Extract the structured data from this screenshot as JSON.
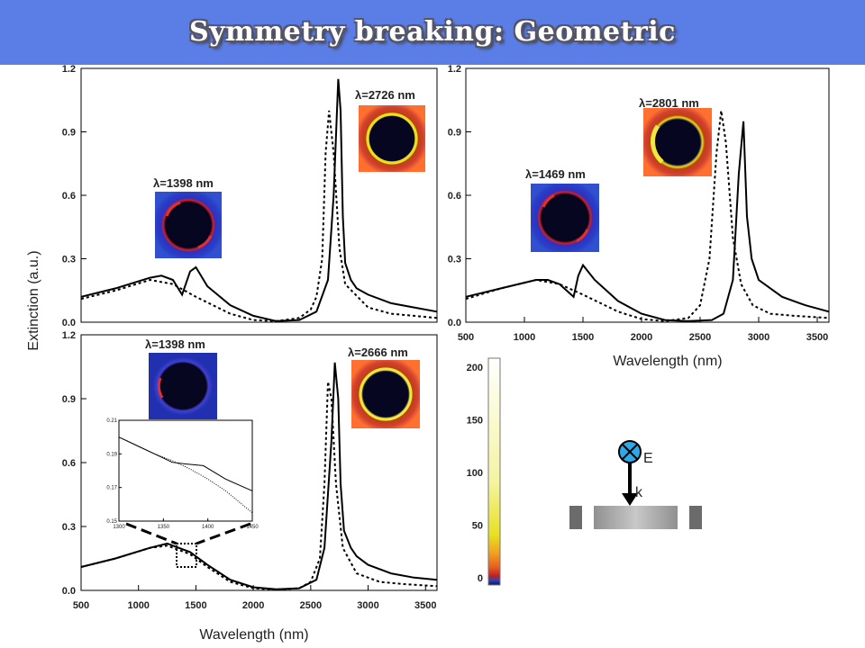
{
  "header": {
    "title": "Symmetry breaking: Geometric"
  },
  "y_axis_label": "Extinction (a.u.)",
  "x_axis_label": "Wavelength (nm)",
  "colorbar": {
    "ticks": [
      "0",
      "50",
      "100",
      "150",
      "200"
    ],
    "colors": [
      "#1a1040",
      "#2a44c0",
      "#c02020",
      "#e86020",
      "#f0a020",
      "#e8e020",
      "#f4f4a0",
      "#ffffff"
    ]
  },
  "schematic": {
    "e_label": "E",
    "k_label": "k"
  },
  "chart_data": [
    {
      "type": "line",
      "xlabel": "",
      "ylabel": "Extinction (a.u.)",
      "xlim": [
        500,
        3600
      ],
      "ylim": [
        0,
        1.2
      ],
      "yticks": [
        "0.0",
        "0.3",
        "0.6",
        "0.9",
        "1.2"
      ],
      "xticks": [],
      "annotations": [
        "λ=1398 nm",
        "λ=2726 nm"
      ],
      "series": [
        {
          "style": "solid",
          "x": [
            500,
            800,
            1100,
            1200,
            1300,
            1380,
            1450,
            1500,
            1600,
            1800,
            2000,
            2200,
            2400,
            2550,
            2650,
            2700,
            2740,
            2760,
            2780,
            2800,
            2850,
            2900,
            3000,
            3200,
            3400,
            3600
          ],
          "y": [
            0.12,
            0.16,
            0.21,
            0.22,
            0.2,
            0.13,
            0.24,
            0.26,
            0.17,
            0.08,
            0.03,
            0.005,
            0.01,
            0.05,
            0.2,
            0.6,
            1.15,
            1.0,
            0.5,
            0.28,
            0.2,
            0.16,
            0.13,
            0.09,
            0.07,
            0.05
          ]
        },
        {
          "style": "dotted",
          "x": [
            500,
            800,
            1100,
            1300,
            1500,
            1800,
            2000,
            2200,
            2400,
            2500,
            2550,
            2600,
            2630,
            2660,
            2700,
            2750,
            2800,
            3000,
            3200,
            3400,
            3600
          ],
          "y": [
            0.11,
            0.15,
            0.2,
            0.18,
            0.12,
            0.04,
            0.01,
            0.005,
            0.02,
            0.06,
            0.12,
            0.3,
            0.8,
            1.0,
            0.8,
            0.35,
            0.18,
            0.07,
            0.04,
            0.03,
            0.02
          ]
        }
      ]
    },
    {
      "type": "line",
      "xlabel": "Wavelength (nm)",
      "ylabel": "",
      "xlim": [
        500,
        3600
      ],
      "ylim": [
        0,
        1.2
      ],
      "yticks": [
        "0.0",
        "0.3",
        "0.6",
        "0.9",
        "1.2"
      ],
      "xticks": [
        "500",
        "1000",
        "1500",
        "2000",
        "2500",
        "3000",
        "3500"
      ],
      "annotations": [
        "λ=1469 nm",
        "λ=2801 nm"
      ],
      "series": [
        {
          "style": "solid",
          "x": [
            500,
            800,
            1100,
            1200,
            1300,
            1420,
            1460,
            1500,
            1600,
            1800,
            2000,
            2200,
            2400,
            2600,
            2700,
            2780,
            2830,
            2870,
            2900,
            2940,
            3000,
            3200,
            3400,
            3600
          ],
          "y": [
            0.12,
            0.16,
            0.2,
            0.2,
            0.18,
            0.12,
            0.22,
            0.27,
            0.2,
            0.1,
            0.04,
            0.01,
            0.005,
            0.01,
            0.04,
            0.2,
            0.7,
            0.95,
            0.5,
            0.3,
            0.2,
            0.12,
            0.08,
            0.05
          ]
        },
        {
          "style": "dotted",
          "x": [
            500,
            800,
            1100,
            1300,
            1500,
            1800,
            2000,
            2200,
            2400,
            2500,
            2580,
            2640,
            2680,
            2720,
            2780,
            2850,
            2950,
            3100,
            3300,
            3600
          ],
          "y": [
            0.11,
            0.16,
            0.2,
            0.18,
            0.13,
            0.05,
            0.015,
            0.005,
            0.02,
            0.08,
            0.3,
            0.8,
            1.0,
            0.85,
            0.4,
            0.18,
            0.08,
            0.04,
            0.03,
            0.02
          ]
        }
      ]
    },
    {
      "type": "line",
      "xlabel": "Wavelength (nm)",
      "ylabel": "",
      "xlim": [
        500,
        3600
      ],
      "ylim": [
        0,
        1.2
      ],
      "yticks": [
        "0.0",
        "0.3",
        "0.6",
        "0.9",
        "1.2"
      ],
      "xticks": [
        "500",
        "1000",
        "1500",
        "2000",
        "2500",
        "3000",
        "3500"
      ],
      "annotations": [
        "λ=1398 nm",
        "λ=2666 nm"
      ],
      "series": [
        {
          "style": "solid",
          "x": [
            500,
            800,
            1100,
            1250,
            1350,
            1450,
            1600,
            1800,
            2000,
            2200,
            2400,
            2550,
            2620,
            2680,
            2710,
            2740,
            2760,
            2790,
            2850,
            2900,
            3000,
            3200,
            3400,
            3600
          ],
          "y": [
            0.11,
            0.15,
            0.2,
            0.22,
            0.2,
            0.18,
            0.12,
            0.05,
            0.015,
            0.005,
            0.01,
            0.05,
            0.2,
            0.7,
            1.07,
            0.9,
            0.5,
            0.28,
            0.2,
            0.16,
            0.12,
            0.08,
            0.06,
            0.05
          ]
        },
        {
          "style": "dotted",
          "x": [
            500,
            800,
            1100,
            1250,
            1350,
            1450,
            1600,
            1800,
            2000,
            2200,
            2400,
            2500,
            2580,
            2620,
            2650,
            2680,
            2720,
            2780,
            2900,
            3100,
            3300,
            3600
          ],
          "y": [
            0.11,
            0.15,
            0.2,
            0.21,
            0.19,
            0.17,
            0.11,
            0.04,
            0.01,
            0.003,
            0.01,
            0.04,
            0.15,
            0.5,
            0.98,
            0.9,
            0.5,
            0.2,
            0.08,
            0.04,
            0.03,
            0.02
          ]
        }
      ]
    },
    {
      "type": "line",
      "xlabel": "",
      "ylabel": "",
      "xlim": [
        1300,
        1450
      ],
      "ylim": [
        0.15,
        0.21
      ],
      "yticks": [
        "0.15",
        "0.17",
        "0.19",
        "0.21"
      ],
      "xticks": [
        "1300",
        "1350",
        "1400",
        "1450"
      ],
      "series": [
        {
          "style": "solid",
          "x": [
            1300,
            1320,
            1340,
            1360,
            1375,
            1395,
            1420,
            1450
          ],
          "y": [
            0.2,
            0.195,
            0.19,
            0.185,
            0.184,
            0.183,
            0.175,
            0.168
          ]
        },
        {
          "style": "dotted",
          "x": [
            1300,
            1320,
            1340,
            1360,
            1380,
            1400,
            1420,
            1450
          ],
          "y": [
            0.2,
            0.195,
            0.19,
            0.186,
            0.181,
            0.175,
            0.168,
            0.155
          ]
        }
      ]
    }
  ]
}
